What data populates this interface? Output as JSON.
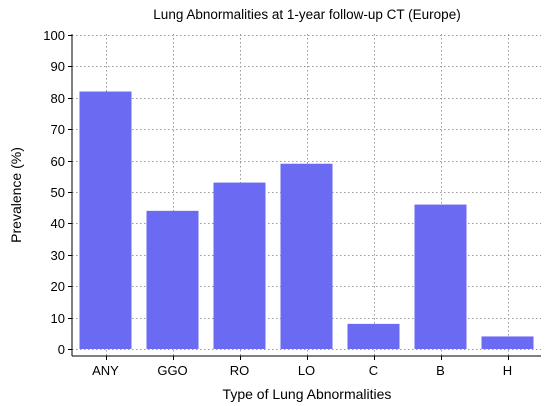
{
  "chart_data": {
    "type": "bar",
    "title": "Lung Abnormalities at 1-year follow-up CT (Europe)",
    "xlabel": "Type of Lung Abnormalities",
    "ylabel": "Prevalence (%)",
    "categories": [
      "ANY",
      "GGO",
      "RO",
      "LO",
      "C",
      "B",
      "H"
    ],
    "values": [
      82,
      44,
      53,
      59,
      8,
      46,
      4
    ],
    "ylim": [
      0,
      100
    ],
    "yticks": [
      "0",
      "10",
      "20",
      "30",
      "40",
      "50",
      "60",
      "70",
      "80",
      "90",
      "100"
    ],
    "grid": true,
    "colors": {
      "bar": "#6a6af3"
    }
  }
}
